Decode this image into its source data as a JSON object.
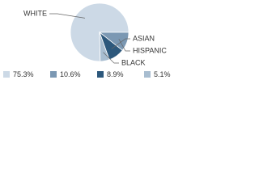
{
  "chart_data": {
    "type": "pie",
    "categories": [
      "WHITE",
      "HISPANIC",
      "ASIAN",
      "BLACK"
    ],
    "values": [
      75.3,
      10.6,
      8.9,
      5.1
    ],
    "value_labels": [
      "75.3%",
      "10.6%",
      "8.9%",
      "5.1%"
    ],
    "colors": [
      "#ccd9e6",
      "#7b98b3",
      "#2d587c",
      "#a8bdd0"
    ]
  }
}
